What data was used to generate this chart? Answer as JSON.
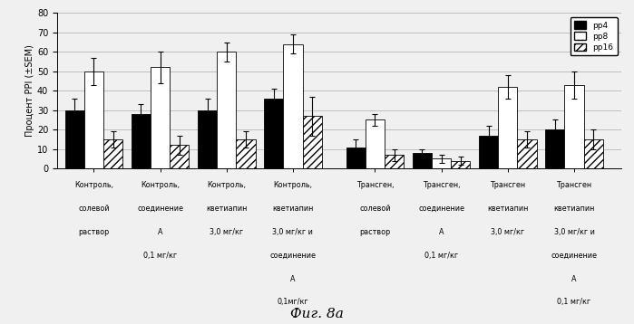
{
  "groups": [
    "Контроль,\nсолевой\nраствор",
    "Контроль,\nсоединение\nА\n0,1 мг/кг",
    "Контроль,\nкветиапин\n3,0 мг/кг",
    "Контроль,\nкветиапин\n3,0 мг/кг и\nсоединение\nА\n0,1мг/кг",
    "Трансген,\nсолевой\nраствор",
    "Трансген,\nсоединение\nА\n0,1 мг/кг",
    "Трансген\nкветиапин\n3,0 мг/кг",
    "Трансген\nкветиапин\n3,0 мг/кг и\nсоединение\nА\n0,1 мг/кг"
  ],
  "pp4": [
    30,
    28,
    30,
    36,
    11,
    8,
    17,
    20
  ],
  "pp8": [
    50,
    52,
    60,
    64,
    25,
    5,
    42,
    43
  ],
  "pp16": [
    15,
    12,
    15,
    27,
    7,
    4,
    15,
    15
  ],
  "pp4_err": [
    6,
    5,
    6,
    5,
    4,
    2,
    5,
    5
  ],
  "pp8_err": [
    7,
    8,
    5,
    5,
    3,
    2,
    6,
    7
  ],
  "pp16_err": [
    4,
    5,
    4,
    10,
    3,
    2,
    4,
    5
  ],
  "ylim": [
    0,
    80
  ],
  "yticks": [
    0,
    10,
    20,
    30,
    40,
    50,
    60,
    70,
    80
  ],
  "ylabel": "Процент PPI (±SEM)",
  "figcaption": "Фиг. 8а",
  "bar_width": 0.22,
  "hatch_pattern": "////",
  "bg_color": "#f0f0f0"
}
